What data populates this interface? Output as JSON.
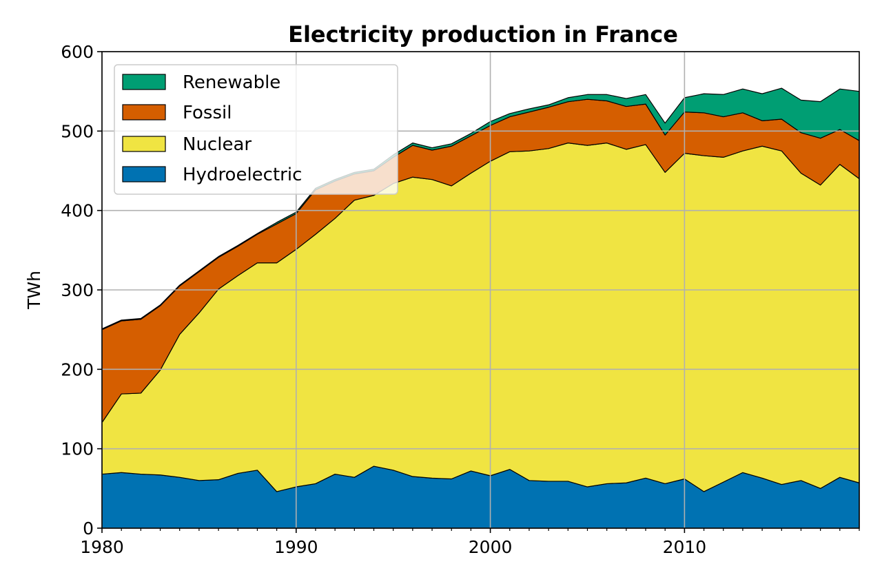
{
  "chart_data": {
    "type": "area",
    "stacked": true,
    "title": "Electricity production in France",
    "xlabel": "",
    "ylabel": "TWh",
    "xlim": [
      1980,
      2019
    ],
    "ylim": [
      0,
      600
    ],
    "xticks": [
      "1980",
      "1990",
      "2000",
      "2010"
    ],
    "yticks": [
      "0",
      "100",
      "200",
      "300",
      "400",
      "500",
      "600"
    ],
    "grid": true,
    "legend_position": "top-left",
    "x": [
      1980,
      1981,
      1982,
      1983,
      1984,
      1985,
      1986,
      1987,
      1988,
      1989,
      1990,
      1991,
      1992,
      1993,
      1994,
      1995,
      1996,
      1997,
      1998,
      1999,
      2000,
      2001,
      2002,
      2003,
      2004,
      2005,
      2006,
      2007,
      2008,
      2009,
      2010,
      2011,
      2012,
      2013,
      2014,
      2015,
      2016,
      2017,
      2018,
      2019
    ],
    "series": [
      {
        "name": "Hydroelectric",
        "color": "#0072B2",
        "values": [
          68,
          70,
          68,
          67,
          64,
          60,
          61,
          69,
          73,
          46,
          52,
          56,
          68,
          64,
          78,
          73,
          65,
          63,
          62,
          72,
          66,
          74,
          60,
          59,
          59,
          52,
          56,
          57,
          63,
          56,
          62,
          46,
          58,
          70,
          63,
          55,
          60,
          50,
          64,
          57
        ]
      },
      {
        "name": "Nuclear",
        "color": "#F0E442",
        "values": [
          65,
          99,
          102,
          132,
          180,
          211,
          240,
          249,
          261,
          288,
          299,
          314,
          322,
          349,
          341,
          361,
          377,
          376,
          369,
          375,
          396,
          400,
          415,
          419,
          426,
          430,
          429,
          420,
          420,
          392,
          410,
          423,
          409,
          405,
          418,
          420,
          387,
          382,
          394,
          383
        ]
      },
      {
        "name": "Fossil",
        "color": "#D55E00",
        "values": [
          117,
          92,
          93,
          81,
          61,
          52,
          40,
          37,
          36,
          49,
          45,
          56,
          47,
          33,
          31,
          33,
          40,
          37,
          50,
          47,
          45,
          44,
          49,
          52,
          52,
          58,
          53,
          54,
          51,
          47,
          52,
          54,
          51,
          48,
          32,
          40,
          51,
          59,
          44,
          48
        ]
      },
      {
        "name": "Renewable",
        "color": "#009E73",
        "values": [
          1,
          1,
          1,
          1,
          1,
          1,
          1,
          1,
          1,
          2,
          2,
          2,
          2,
          2,
          2,
          3,
          3,
          3,
          3,
          3,
          5,
          4,
          4,
          3,
          5,
          6,
          8,
          10,
          12,
          15,
          18,
          24,
          28,
          30,
          34,
          39,
          41,
          46,
          51,
          62
        ]
      }
    ],
    "legend_order": [
      "Renewable",
      "Fossil",
      "Nuclear",
      "Hydroelectric"
    ]
  }
}
